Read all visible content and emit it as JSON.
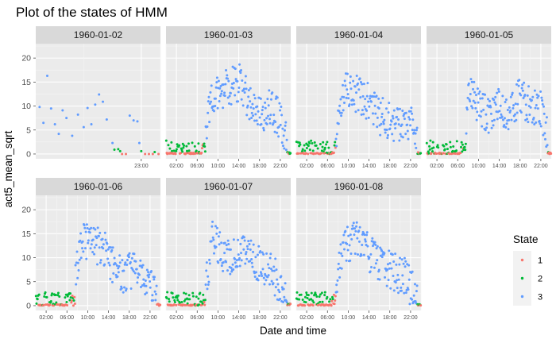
{
  "chart_data": {
    "type": "scatter",
    "title": "Plot of the states of HMM",
    "xlabel": "Date and time",
    "ylabel": "act5_mean_sqrt",
    "ylim": [
      -1,
      23
    ],
    "y_ticks": [
      0,
      5,
      10,
      15,
      20
    ],
    "legend": {
      "title": "State",
      "position": "right",
      "entries": [
        {
          "label": "1",
          "color": "#F8766D"
        },
        {
          "label": "2",
          "color": "#00BA38"
        },
        {
          "label": "3",
          "color": "#619CFF"
        }
      ]
    },
    "panels": [
      {
        "strip": "1960-01-02",
        "x_ticks": [
          {
            "h": 23,
            "label": "23:00"
          }
        ],
        "xlim": [
          17.5,
          24
        ],
        "points": [
          [
            17.7,
            9.8,
            3
          ],
          [
            17.9,
            6.5,
            3
          ],
          [
            18.1,
            16.3,
            3
          ],
          [
            18.3,
            9.5,
            3
          ],
          [
            18.5,
            6.2,
            3
          ],
          [
            18.7,
            4.2,
            3
          ],
          [
            18.9,
            9.1,
            3
          ],
          [
            19.1,
            7.5,
            3
          ],
          [
            19.4,
            3.8,
            3
          ],
          [
            19.7,
            8.2,
            3
          ],
          [
            20.0,
            5.6,
            3
          ],
          [
            20.2,
            9.6,
            3
          ],
          [
            20.4,
            6.2,
            3
          ],
          [
            20.6,
            10.3,
            3
          ],
          [
            20.8,
            12.4,
            3
          ],
          [
            21.0,
            10.9,
            3
          ],
          [
            21.2,
            7.2,
            3
          ],
          [
            21.5,
            2.3,
            3
          ],
          [
            21.6,
            0.9,
            2
          ],
          [
            21.8,
            1.0,
            2
          ],
          [
            21.9,
            0.6,
            2
          ],
          [
            22.0,
            0.0,
            1
          ],
          [
            22.2,
            0.0,
            1
          ],
          [
            22.4,
            8.0,
            3
          ],
          [
            22.6,
            7.0,
            3
          ],
          [
            22.8,
            6.8,
            3
          ],
          [
            22.9,
            2.3,
            3
          ],
          [
            23.0,
            0.6,
            2
          ],
          [
            23.2,
            0.0,
            1
          ],
          [
            23.4,
            0.0,
            1
          ],
          [
            23.6,
            0.0,
            1
          ],
          [
            23.7,
            0.4,
            2
          ],
          [
            23.9,
            0.0,
            1
          ]
        ]
      },
      {
        "strip": "1960-01-03",
        "x_ticks": [
          {
            "h": 2,
            "label": "02:00"
          },
          {
            "h": 6,
            "label": "06:00"
          },
          {
            "h": 10,
            "label": "10:00"
          },
          {
            "h": 14,
            "label": "14:00"
          },
          {
            "h": 18,
            "label": "18:00"
          },
          {
            "h": 22,
            "label": "22:00"
          }
        ],
        "xlim": [
          0,
          24
        ],
        "seed": 3,
        "profile": [
          [
            0,
            0.3
          ],
          [
            6,
            0.4
          ],
          [
            7.5,
            3
          ],
          [
            8.5,
            12
          ],
          [
            10,
            13
          ],
          [
            12,
            14
          ],
          [
            14,
            15
          ],
          [
            16,
            11
          ],
          [
            18,
            8
          ],
          [
            20,
            10
          ],
          [
            22,
            7
          ],
          [
            23,
            3
          ],
          [
            24,
            0.5
          ]
        ]
      },
      {
        "strip": "1960-01-04",
        "x_ticks": [
          {
            "h": 2,
            "label": "02:00"
          },
          {
            "h": 6,
            "label": "06:00"
          },
          {
            "h": 10,
            "label": "10:00"
          },
          {
            "h": 14,
            "label": "14:00"
          },
          {
            "h": 18,
            "label": "18:00"
          },
          {
            "h": 22,
            "label": "22:00"
          }
        ],
        "xlim": [
          0,
          24
        ],
        "seed": 4,
        "profile": [
          [
            0,
            0.3
          ],
          [
            6,
            0.5
          ],
          [
            7.5,
            3
          ],
          [
            8.5,
            10
          ],
          [
            10,
            14
          ],
          [
            12,
            12
          ],
          [
            14,
            11
          ],
          [
            16,
            8
          ],
          [
            18,
            7
          ],
          [
            20,
            6
          ],
          [
            22,
            7
          ],
          [
            23,
            2
          ],
          [
            24,
            0.5
          ]
        ]
      },
      {
        "strip": "1960-01-05",
        "x_ticks": [
          {
            "h": 2,
            "label": "02:00"
          },
          {
            "h": 6,
            "label": "06:00"
          },
          {
            "h": 10,
            "label": "10:00"
          },
          {
            "h": 14,
            "label": "14:00"
          },
          {
            "h": 18,
            "label": "18:00"
          },
          {
            "h": 22,
            "label": "22:00"
          }
        ],
        "xlim": [
          0,
          24
        ],
        "seed": 5,
        "profile": [
          [
            0,
            0.3
          ],
          [
            6,
            0.5
          ],
          [
            7.2,
            4
          ],
          [
            8.5,
            14
          ],
          [
            10,
            10
          ],
          [
            12,
            8
          ],
          [
            14,
            10
          ],
          [
            16,
            9
          ],
          [
            18,
            12
          ],
          [
            20,
            10
          ],
          [
            22,
            9
          ],
          [
            23,
            5
          ],
          [
            24,
            1
          ]
        ]
      },
      {
        "strip": "1960-01-06",
        "x_ticks": [
          {
            "h": 2,
            "label": "02:00"
          },
          {
            "h": 6,
            "label": "06:00"
          },
          {
            "h": 10,
            "label": "10:00"
          },
          {
            "h": 14,
            "label": "14:00"
          },
          {
            "h": 18,
            "label": "18:00"
          },
          {
            "h": 22,
            "label": "22:00"
          }
        ],
        "xlim": [
          0,
          24
        ],
        "seed": 6,
        "profile": [
          [
            0,
            0.3
          ],
          [
            6,
            0.5
          ],
          [
            7.5,
            5
          ],
          [
            9,
            14
          ],
          [
            11,
            13
          ],
          [
            13,
            12
          ],
          [
            15,
            8
          ],
          [
            17,
            6
          ],
          [
            19,
            8
          ],
          [
            21,
            6
          ],
          [
            22.5,
            3
          ],
          [
            24,
            0.5
          ]
        ]
      },
      {
        "strip": "1960-01-07",
        "x_ticks": [
          {
            "h": 2,
            "label": "02:00"
          },
          {
            "h": 6,
            "label": "06:00"
          },
          {
            "h": 10,
            "label": "10:00"
          },
          {
            "h": 14,
            "label": "14:00"
          },
          {
            "h": 18,
            "label": "18:00"
          },
          {
            "h": 22,
            "label": "22:00"
          }
        ],
        "xlim": [
          0,
          24
        ],
        "seed": 7,
        "profile": [
          [
            0,
            0.3
          ],
          [
            6,
            0.5
          ],
          [
            7.5,
            3
          ],
          [
            9,
            14
          ],
          [
            11,
            11
          ],
          [
            13,
            10
          ],
          [
            15,
            11
          ],
          [
            17,
            9
          ],
          [
            19,
            8
          ],
          [
            21,
            6
          ],
          [
            22.5,
            2
          ],
          [
            24,
            0.5
          ]
        ]
      },
      {
        "strip": "1960-01-08",
        "x_ticks": [
          {
            "h": 2,
            "label": "02:00"
          },
          {
            "h": 6,
            "label": "06:00"
          },
          {
            "h": 10,
            "label": "10:00"
          },
          {
            "h": 14,
            "label": "14:00"
          },
          {
            "h": 18,
            "label": "18:00"
          },
          {
            "h": 22,
            "label": "22:00"
          }
        ],
        "xlim": [
          0,
          24
        ],
        "seed": 8,
        "profile": [
          [
            0,
            0.3
          ],
          [
            6,
            0.5
          ],
          [
            7.5,
            4
          ],
          [
            9,
            12
          ],
          [
            11,
            14
          ],
          [
            13,
            12
          ],
          [
            15,
            10
          ],
          [
            17,
            8
          ],
          [
            19,
            7
          ],
          [
            21,
            6
          ],
          [
            22.5,
            3
          ],
          [
            24,
            0.5
          ]
        ]
      }
    ]
  }
}
